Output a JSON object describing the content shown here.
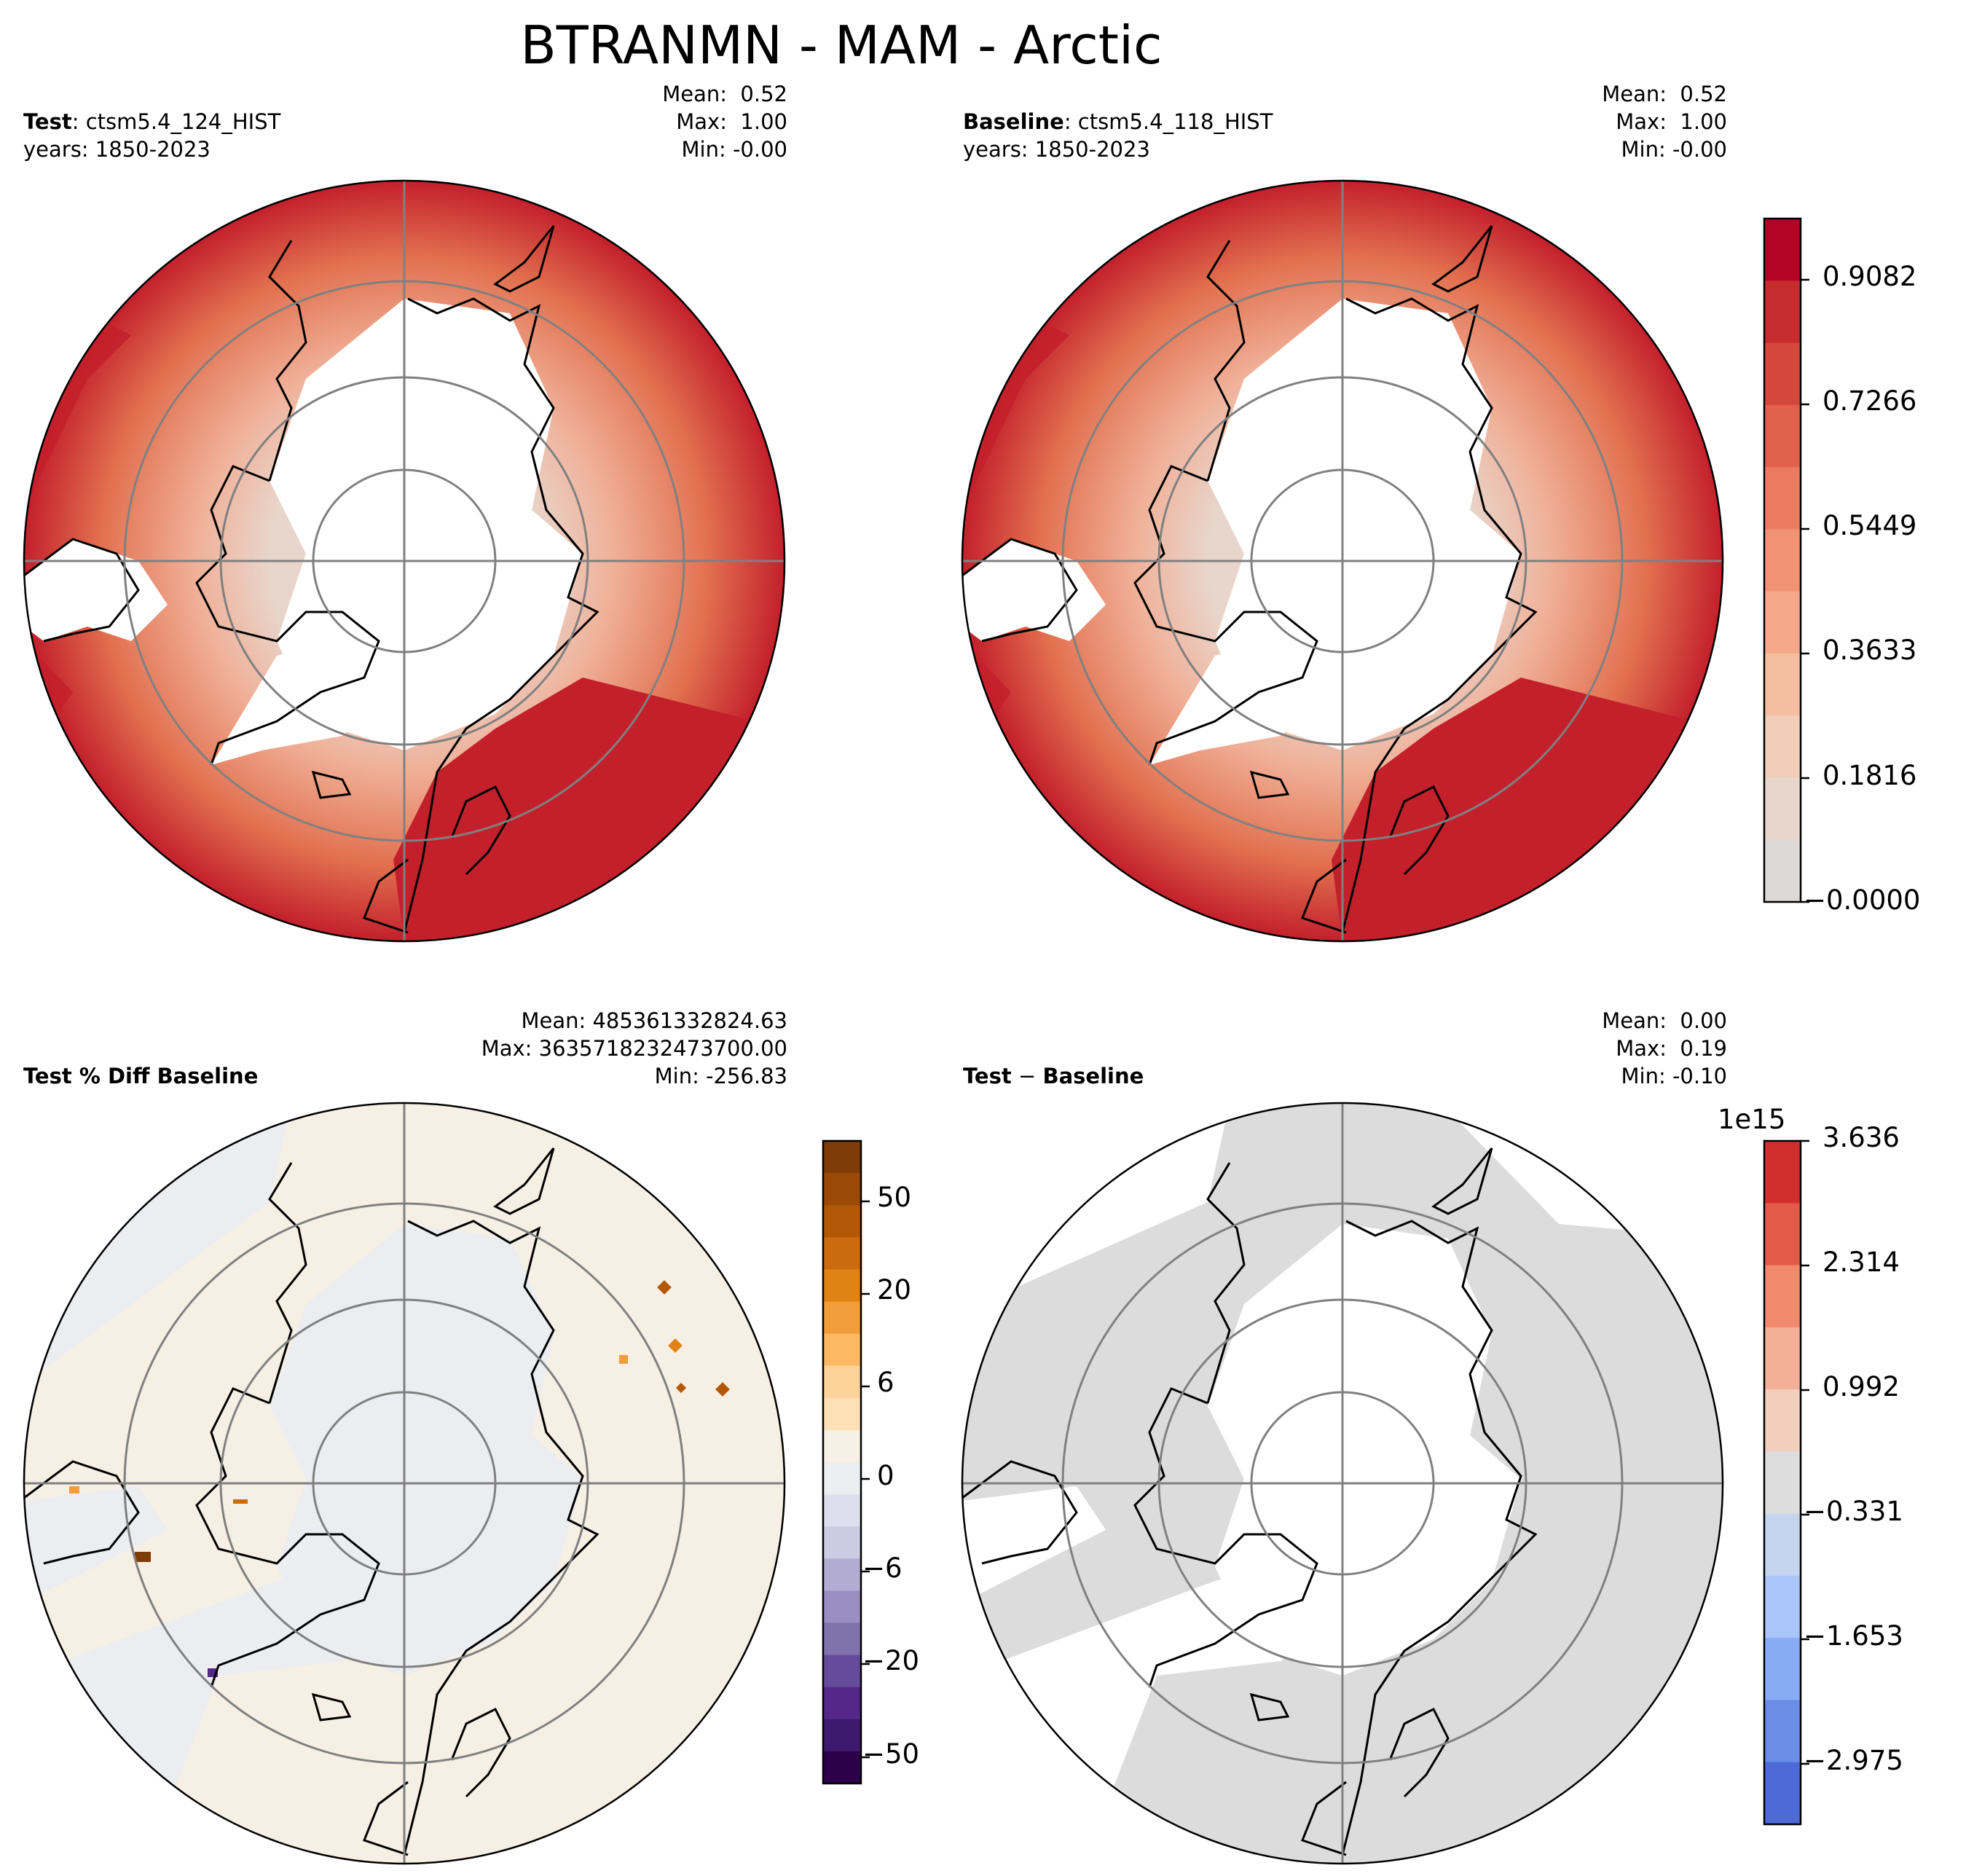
{
  "title": "BTRANMN - MAM - Arctic",
  "panels": {
    "test": {
      "label_bold": "Test",
      "label_rest": ": ctsm5.4_124_HIST",
      "years": "years: 1850-2023",
      "mean": "Mean:  0.52",
      "max": "Max:  1.00",
      "min": "Min: -0.00"
    },
    "baseline": {
      "label_bold": "Baseline",
      "label_rest": ": ctsm5.4_118_HIST",
      "years": "years: 1850-2023",
      "mean": "Mean:  0.52",
      "max": "Max:  1.00",
      "min": "Min: -0.00"
    },
    "pct_diff": {
      "label_bold": "Test % Diff Baseline",
      "mean": "Mean: 485361332824.63",
      "max": "Max: 3635718232473700.00",
      "min": "Min: -256.83"
    },
    "diff": {
      "label_bold": "Test",
      "label_mid": " − ",
      "label_bold2": "Baseline",
      "mean": "Mean:  0.00",
      "max": "Max:  0.19",
      "min": "Min: -0.10"
    }
  },
  "colorbars": {
    "value": {
      "ticks": [
        "0.9082",
        "0.7266",
        "0.5449",
        "0.3633",
        "0.1816",
        "−0.0000"
      ],
      "colors": [
        "#b40426",
        "#c62b2e",
        "#d4473b",
        "#e0624c",
        "#ea7b60",
        "#f29274",
        "#f5a88a",
        "#f6bea0",
        "#f2cdb8",
        "#e8d6cc",
        "#dcdad9"
      ]
    },
    "pct": {
      "ticks": [
        "50",
        "20",
        "6",
        "0",
        "−6",
        "−20",
        "−50"
      ],
      "colors": [
        "#7f3b08",
        "#9a4a06",
        "#b35806",
        "#cb6a0f",
        "#e08214",
        "#f09d3a",
        "#fdb863",
        "#fdd39b",
        "#fee0b6",
        "#f7f0e4",
        "#eceef2",
        "#dedfee",
        "#cccbe3",
        "#b2abd2",
        "#9b8ec2",
        "#8073ac",
        "#654c9a",
        "#542788",
        "#3e1a6e",
        "#2d004b"
      ]
    },
    "diff": {
      "exponent": "1e15",
      "ticks": [
        "3.636",
        "2.314",
        "0.992",
        "−0.331",
        "−1.653",
        "−2.975"
      ],
      "colors": [
        "#d02f2d",
        "#e35a48",
        "#ef8a6c",
        "#f4b096",
        "#f2cebc",
        "#dddddd",
        "#c5d5f0",
        "#a9c5fa",
        "#87abf5",
        "#6a8de8",
        "#4d6ad6"
      ]
    }
  },
  "map_colors": {
    "land_high": "#c3202c",
    "land_mid": "#e2704f",
    "land_low": "#f0b098",
    "land_zero": "#e3dcd7",
    "pct_land": "#f6efe4",
    "pct_neutral": "#ecedf1",
    "diff_land": "#dcdcdc",
    "graticule": "#808080"
  }
}
